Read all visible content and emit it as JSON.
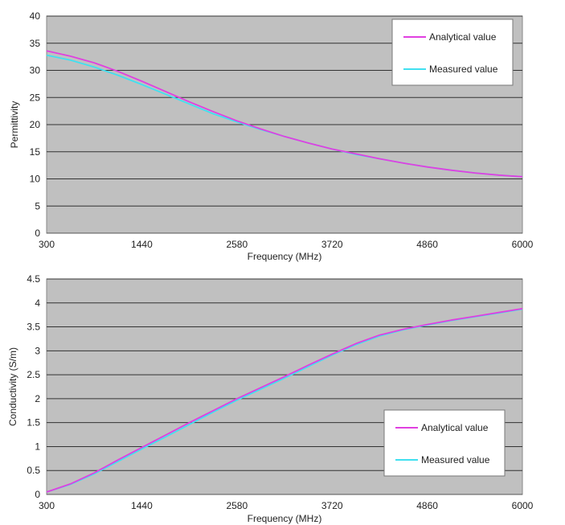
{
  "colors": {
    "plot_bg": "#c0c0c0",
    "analytical": "#e040e0",
    "measured": "#40e0f0",
    "gridline": "#333333"
  },
  "chart_data": [
    {
      "type": "line",
      "xlabel": "Frequency (MHz)",
      "ylabel": "Permittivity",
      "ylim": [
        0,
        40
      ],
      "y_ticks": [
        "0",
        "5",
        "10",
        "15",
        "20",
        "25",
        "30",
        "35",
        "40"
      ],
      "x_ticks": [
        "300",
        "1440",
        "2580",
        "3720",
        "4860",
        "6000"
      ],
      "xlim": [
        300,
        6000
      ],
      "grid": true,
      "legend_position": "top-right",
      "series": [
        {
          "name": "Analytical value",
          "x": [
            300,
            585,
            870,
            1155,
            1440,
            1725,
            2010,
            2295,
            2580,
            2865,
            3150,
            3435,
            3720,
            4005,
            4290,
            4575,
            4860,
            5145,
            5430,
            5715,
            6000
          ],
          "values": [
            33.6,
            32.6,
            31.4,
            29.8,
            28.0,
            26.1,
            24.2,
            22.4,
            20.7,
            19.2,
            17.8,
            16.6,
            15.5,
            14.6,
            13.7,
            12.9,
            12.2,
            11.6,
            11.1,
            10.7,
            10.4
          ]
        },
        {
          "name": "Measured value",
          "x": [
            300,
            585,
            870,
            1155,
            1440,
            1725,
            2010,
            2295,
            2580,
            2865,
            3150,
            3435,
            3720,
            4005,
            4290,
            4575,
            4860,
            5145,
            5430,
            5715,
            6000
          ],
          "values": [
            32.8,
            31.9,
            30.6,
            29.1,
            27.4,
            25.6,
            23.8,
            22.0,
            20.5,
            19.1,
            17.8,
            16.6,
            15.5,
            14.5,
            13.7,
            12.9,
            12.2,
            11.6,
            11.1,
            10.7,
            10.4
          ]
        }
      ]
    },
    {
      "type": "line",
      "xlabel": "Frequency (MHz)",
      "ylabel": "Conductivity (S/m)",
      "ylim": [
        0,
        4.5
      ],
      "y_ticks": [
        "0",
        "0.5",
        "1",
        "1.5",
        "2",
        "2.5",
        "3",
        "3.5",
        "4",
        "4.5"
      ],
      "x_ticks": [
        "300",
        "1440",
        "2580",
        "3720",
        "4860",
        "6000"
      ],
      "xlim": [
        300,
        6000
      ],
      "grid": true,
      "legend_position": "bottom-right",
      "series": [
        {
          "name": "Analytical value",
          "x": [
            300,
            585,
            870,
            1155,
            1440,
            1725,
            2010,
            2295,
            2580,
            2865,
            3150,
            3435,
            3720,
            4005,
            4290,
            4575,
            4860,
            5145,
            5430,
            5715,
            6000
          ],
          "values": [
            0.05,
            0.22,
            0.45,
            0.72,
            0.98,
            1.24,
            1.5,
            1.75,
            2.0,
            2.23,
            2.46,
            2.7,
            2.93,
            3.15,
            3.33,
            3.45,
            3.55,
            3.64,
            3.72,
            3.8,
            3.88
          ]
        },
        {
          "name": "Measured value",
          "x": [
            300,
            585,
            870,
            1155,
            1440,
            1725,
            2010,
            2295,
            2580,
            2865,
            3150,
            3435,
            3720,
            4005,
            4290,
            4575,
            4860,
            5145,
            5430,
            5715,
            6000
          ],
          "values": [
            0.05,
            0.21,
            0.43,
            0.69,
            0.95,
            1.2,
            1.46,
            1.72,
            1.97,
            2.2,
            2.43,
            2.67,
            2.91,
            3.13,
            3.31,
            3.44,
            3.54,
            3.63,
            3.71,
            3.79,
            3.87
          ]
        }
      ]
    }
  ]
}
